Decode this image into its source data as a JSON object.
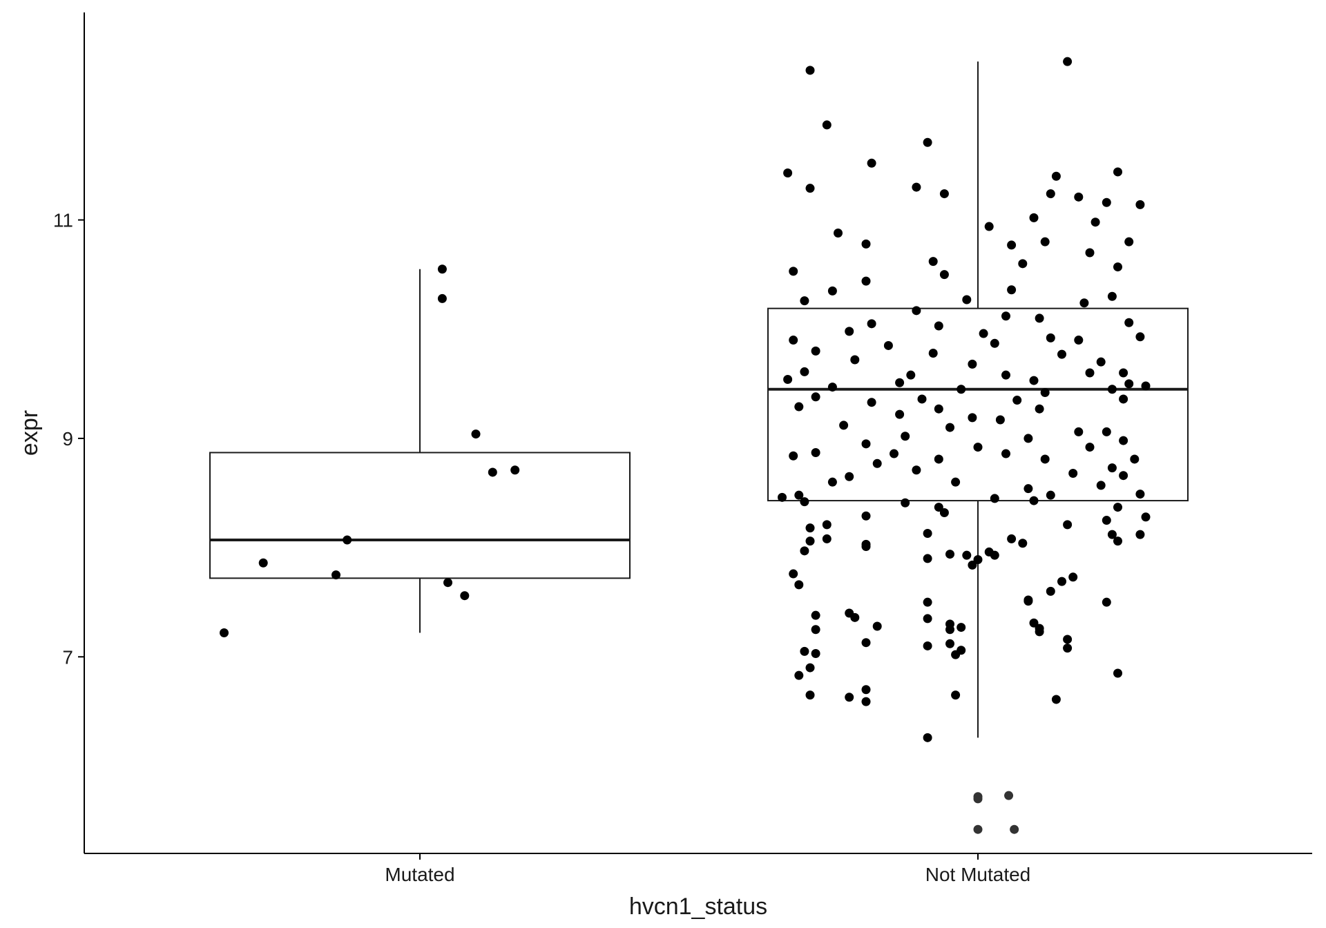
{
  "chart_data": {
    "type": "box",
    "title": "",
    "xlabel": "hvcn1_status",
    "ylabel": "expr",
    "ylim": [
      5.2,
      12.9
    ],
    "yticks": [
      7,
      9,
      11
    ],
    "categories": [
      "Mutated",
      "Not Mutated"
    ],
    "grid": false,
    "legend": "none",
    "colors": {
      "axis": "#000000",
      "box": "#1a1a1a",
      "points": "#000000"
    },
    "boxes": [
      {
        "category": "Mutated",
        "whisker_low": 7.22,
        "q1": 7.72,
        "median": 8.07,
        "q3": 8.87,
        "whisker_high": 10.55,
        "outliers": []
      },
      {
        "category": "Not Mutated",
        "whisker_low": 6.26,
        "q1": 8.43,
        "median": 9.45,
        "q3": 10.19,
        "whisker_high": 12.45,
        "outliers": [
          5.72,
          5.7,
          5.73,
          5.42,
          5.42
        ]
      }
    ],
    "points": [
      {
        "category": "Mutated",
        "offset": 0.04,
        "y": 10.55
      },
      {
        "category": "Mutated",
        "offset": 0.04,
        "y": 10.28
      },
      {
        "category": "Mutated",
        "offset": 0.1,
        "y": 9.04
      },
      {
        "category": "Mutated",
        "offset": 0.17,
        "y": 8.71
      },
      {
        "category": "Mutated",
        "offset": 0.13,
        "y": 8.69
      },
      {
        "category": "Mutated",
        "offset": -0.13,
        "y": 8.07
      },
      {
        "category": "Mutated",
        "offset": -0.28,
        "y": 7.86
      },
      {
        "category": "Mutated",
        "offset": -0.15,
        "y": 7.75
      },
      {
        "category": "Mutated",
        "offset": 0.05,
        "y": 7.68
      },
      {
        "category": "Mutated",
        "offset": 0.08,
        "y": 7.56
      },
      {
        "category": "Mutated",
        "offset": -0.35,
        "y": 7.22
      },
      {
        "category": "Not Mutated",
        "offset": -0.3,
        "y": 12.37
      },
      {
        "category": "Not Mutated",
        "offset": 0.16,
        "y": 12.45
      },
      {
        "category": "Not Mutated",
        "offset": -0.27,
        "y": 11.87
      },
      {
        "category": "Not Mutated",
        "offset": -0.09,
        "y": 11.71
      },
      {
        "category": "Not Mutated",
        "offset": -0.19,
        "y": 11.52
      },
      {
        "category": "Not Mutated",
        "offset": -0.34,
        "y": 11.43
      },
      {
        "category": "Not Mutated",
        "offset": 0.25,
        "y": 11.44
      },
      {
        "category": "Not Mutated",
        "offset": 0.14,
        "y": 11.4
      },
      {
        "category": "Not Mutated",
        "offset": -0.3,
        "y": 11.29
      },
      {
        "category": "Not Mutated",
        "offset": -0.11,
        "y": 11.3
      },
      {
        "category": "Not Mutated",
        "offset": -0.06,
        "y": 11.24
      },
      {
        "category": "Not Mutated",
        "offset": 0.13,
        "y": 11.24
      },
      {
        "category": "Not Mutated",
        "offset": 0.18,
        "y": 11.21
      },
      {
        "category": "Not Mutated",
        "offset": 0.29,
        "y": 11.14
      },
      {
        "category": "Not Mutated",
        "offset": 0.23,
        "y": 11.16
      },
      {
        "category": "Not Mutated",
        "offset": 0.1,
        "y": 11.02
      },
      {
        "category": "Not Mutated",
        "offset": -0.25,
        "y": 10.88
      },
      {
        "category": "Not Mutated",
        "offset": 0.02,
        "y": 10.94
      },
      {
        "category": "Not Mutated",
        "offset": 0.12,
        "y": 10.8
      },
      {
        "category": "Not Mutated",
        "offset": 0.21,
        "y": 10.98
      },
      {
        "category": "Not Mutated",
        "offset": 0.27,
        "y": 10.8
      },
      {
        "category": "Not Mutated",
        "offset": -0.2,
        "y": 10.78
      },
      {
        "category": "Not Mutated",
        "offset": 0.06,
        "y": 10.77
      },
      {
        "category": "Not Mutated",
        "offset": 0.2,
        "y": 10.7
      },
      {
        "category": "Not Mutated",
        "offset": -0.08,
        "y": 10.62
      },
      {
        "category": "Not Mutated",
        "offset": 0.08,
        "y": 10.6
      },
      {
        "category": "Not Mutated",
        "offset": -0.2,
        "y": 10.44
      },
      {
        "category": "Not Mutated",
        "offset": -0.33,
        "y": 10.53
      },
      {
        "category": "Not Mutated",
        "offset": 0.25,
        "y": 10.57
      },
      {
        "category": "Not Mutated",
        "offset": -0.06,
        "y": 10.5
      },
      {
        "category": "Not Mutated",
        "offset": -0.26,
        "y": 10.35
      },
      {
        "category": "Not Mutated",
        "offset": 0.06,
        "y": 10.36
      },
      {
        "category": "Not Mutated",
        "offset": -0.02,
        "y": 10.27
      },
      {
        "category": "Not Mutated",
        "offset": -0.31,
        "y": 10.26
      },
      {
        "category": "Not Mutated",
        "offset": 0.19,
        "y": 10.24
      },
      {
        "category": "Not Mutated",
        "offset": 0.24,
        "y": 10.3
      },
      {
        "category": "Not Mutated",
        "offset": -0.11,
        "y": 10.17
      },
      {
        "category": "Not Mutated",
        "offset": 0.05,
        "y": 10.12
      },
      {
        "category": "Not Mutated",
        "offset": 0.11,
        "y": 10.1
      },
      {
        "category": "Not Mutated",
        "offset": -0.19,
        "y": 10.05
      },
      {
        "category": "Not Mutated",
        "offset": 0.27,
        "y": 10.06
      },
      {
        "category": "Not Mutated",
        "offset": -0.07,
        "y": 10.03
      },
      {
        "category": "Not Mutated",
        "offset": 0.01,
        "y": 9.96
      },
      {
        "category": "Not Mutated",
        "offset": -0.23,
        "y": 9.98
      },
      {
        "category": "Not Mutated",
        "offset": -0.33,
        "y": 9.9
      },
      {
        "category": "Not Mutated",
        "offset": 0.13,
        "y": 9.92
      },
      {
        "category": "Not Mutated",
        "offset": 0.18,
        "y": 9.9
      },
      {
        "category": "Not Mutated",
        "offset": 0.29,
        "y": 9.93
      },
      {
        "category": "Not Mutated",
        "offset": -0.16,
        "y": 9.85
      },
      {
        "category": "Not Mutated",
        "offset": 0.03,
        "y": 9.87
      },
      {
        "category": "Not Mutated",
        "offset": -0.29,
        "y": 9.8
      },
      {
        "category": "Not Mutated",
        "offset": -0.08,
        "y": 9.78
      },
      {
        "category": "Not Mutated",
        "offset": 0.15,
        "y": 9.77
      },
      {
        "category": "Not Mutated",
        "offset": -0.22,
        "y": 9.72
      },
      {
        "category": "Not Mutated",
        "offset": -0.01,
        "y": 9.68
      },
      {
        "category": "Not Mutated",
        "offset": 0.22,
        "y": 9.7
      },
      {
        "category": "Not Mutated",
        "offset": -0.31,
        "y": 9.61
      },
      {
        "category": "Not Mutated",
        "offset": -0.12,
        "y": 9.58
      },
      {
        "category": "Not Mutated",
        "offset": 0.05,
        "y": 9.58
      },
      {
        "category": "Not Mutated",
        "offset": 0.2,
        "y": 9.6
      },
      {
        "category": "Not Mutated",
        "offset": 0.26,
        "y": 9.6
      },
      {
        "category": "Not Mutated",
        "offset": -0.34,
        "y": 9.54
      },
      {
        "category": "Not Mutated",
        "offset": -0.14,
        "y": 9.51
      },
      {
        "category": "Not Mutated",
        "offset": 0.1,
        "y": 9.53
      },
      {
        "category": "Not Mutated",
        "offset": 0.27,
        "y": 9.5
      },
      {
        "category": "Not Mutated",
        "offset": 0.3,
        "y": 9.48
      },
      {
        "category": "Not Mutated",
        "offset": -0.26,
        "y": 9.47
      },
      {
        "category": "Not Mutated",
        "offset": -0.03,
        "y": 9.45
      },
      {
        "category": "Not Mutated",
        "offset": 0.12,
        "y": 9.42
      },
      {
        "category": "Not Mutated",
        "offset": 0.24,
        "y": 9.45
      },
      {
        "category": "Not Mutated",
        "offset": -0.29,
        "y": 9.38
      },
      {
        "category": "Not Mutated",
        "offset": -0.1,
        "y": 9.36
      },
      {
        "category": "Not Mutated",
        "offset": 0.07,
        "y": 9.35
      },
      {
        "category": "Not Mutated",
        "offset": 0.26,
        "y": 9.36
      },
      {
        "category": "Not Mutated",
        "offset": -0.19,
        "y": 9.33
      },
      {
        "category": "Not Mutated",
        "offset": -0.32,
        "y": 9.29
      },
      {
        "category": "Not Mutated",
        "offset": -0.07,
        "y": 9.27
      },
      {
        "category": "Not Mutated",
        "offset": 0.11,
        "y": 9.27
      },
      {
        "category": "Not Mutated",
        "offset": -0.14,
        "y": 9.22
      },
      {
        "category": "Not Mutated",
        "offset": -0.01,
        "y": 9.19
      },
      {
        "category": "Not Mutated",
        "offset": 0.04,
        "y": 9.17
      },
      {
        "category": "Not Mutated",
        "offset": -0.24,
        "y": 9.12
      },
      {
        "category": "Not Mutated",
        "offset": -0.05,
        "y": 9.1
      },
      {
        "category": "Not Mutated",
        "offset": 0.18,
        "y": 9.06
      },
      {
        "category": "Not Mutated",
        "offset": 0.23,
        "y": 9.06
      },
      {
        "category": "Not Mutated",
        "offset": -0.13,
        "y": 9.02
      },
      {
        "category": "Not Mutated",
        "offset": 0.09,
        "y": 9.0
      },
      {
        "category": "Not Mutated",
        "offset": 0.26,
        "y": 8.98
      },
      {
        "category": "Not Mutated",
        "offset": -0.2,
        "y": 8.95
      },
      {
        "category": "Not Mutated",
        "offset": 0.0,
        "y": 8.92
      },
      {
        "category": "Not Mutated",
        "offset": 0.2,
        "y": 8.92
      },
      {
        "category": "Not Mutated",
        "offset": -0.29,
        "y": 8.87
      },
      {
        "category": "Not Mutated",
        "offset": -0.15,
        "y": 8.86
      },
      {
        "category": "Not Mutated",
        "offset": 0.05,
        "y": 8.86
      },
      {
        "category": "Not Mutated",
        "offset": -0.33,
        "y": 8.84
      },
      {
        "category": "Not Mutated",
        "offset": -0.07,
        "y": 8.81
      },
      {
        "category": "Not Mutated",
        "offset": 0.12,
        "y": 8.81
      },
      {
        "category": "Not Mutated",
        "offset": 0.28,
        "y": 8.81
      },
      {
        "category": "Not Mutated",
        "offset": -0.18,
        "y": 8.77
      },
      {
        "category": "Not Mutated",
        "offset": 0.24,
        "y": 8.73
      },
      {
        "category": "Not Mutated",
        "offset": -0.11,
        "y": 8.71
      },
      {
        "category": "Not Mutated",
        "offset": 0.17,
        "y": 8.68
      },
      {
        "category": "Not Mutated",
        "offset": -0.23,
        "y": 8.65
      },
      {
        "category": "Not Mutated",
        "offset": 0.26,
        "y": 8.66
      },
      {
        "category": "Not Mutated",
        "offset": -0.26,
        "y": 8.6
      },
      {
        "category": "Not Mutated",
        "offset": -0.04,
        "y": 8.6
      },
      {
        "category": "Not Mutated",
        "offset": 0.22,
        "y": 8.57
      },
      {
        "category": "Not Mutated",
        "offset": 0.09,
        "y": 8.54
      },
      {
        "category": "Not Mutated",
        "offset": -0.32,
        "y": 8.48
      },
      {
        "category": "Not Mutated",
        "offset": 0.13,
        "y": 8.48
      },
      {
        "category": "Not Mutated",
        "offset": 0.29,
        "y": 8.49
      },
      {
        "category": "Not Mutated",
        "offset": -0.35,
        "y": 8.46
      },
      {
        "category": "Not Mutated",
        "offset": 0.03,
        "y": 8.45
      },
      {
        "category": "Not Mutated",
        "offset": -0.31,
        "y": 8.42
      },
      {
        "category": "Not Mutated",
        "offset": -0.13,
        "y": 8.41
      },
      {
        "category": "Not Mutated",
        "offset": 0.1,
        "y": 8.43
      },
      {
        "category": "Not Mutated",
        "offset": -0.07,
        "y": 8.37
      },
      {
        "category": "Not Mutated",
        "offset": 0.25,
        "y": 8.37
      },
      {
        "category": "Not Mutated",
        "offset": -0.06,
        "y": 8.32
      },
      {
        "category": "Not Mutated",
        "offset": -0.2,
        "y": 8.29
      },
      {
        "category": "Not Mutated",
        "offset": 0.3,
        "y": 8.28
      },
      {
        "category": "Not Mutated",
        "offset": 0.23,
        "y": 8.25
      },
      {
        "category": "Not Mutated",
        "offset": -0.27,
        "y": 8.21
      },
      {
        "category": "Not Mutated",
        "offset": -0.3,
        "y": 8.18
      },
      {
        "category": "Not Mutated",
        "offset": 0.16,
        "y": 8.21
      },
      {
        "category": "Not Mutated",
        "offset": -0.09,
        "y": 8.13
      },
      {
        "category": "Not Mutated",
        "offset": 0.24,
        "y": 8.12
      },
      {
        "category": "Not Mutated",
        "offset": 0.29,
        "y": 8.12
      },
      {
        "category": "Not Mutated",
        "offset": -0.27,
        "y": 8.08
      },
      {
        "category": "Not Mutated",
        "offset": -0.3,
        "y": 8.06
      },
      {
        "category": "Not Mutated",
        "offset": 0.06,
        "y": 8.08
      },
      {
        "category": "Not Mutated",
        "offset": 0.25,
        "y": 8.06
      },
      {
        "category": "Not Mutated",
        "offset": -0.2,
        "y": 8.03
      },
      {
        "category": "Not Mutated",
        "offset": 0.08,
        "y": 8.04
      },
      {
        "category": "Not Mutated",
        "offset": -0.2,
        "y": 8.01
      },
      {
        "category": "Not Mutated",
        "offset": -0.31,
        "y": 7.97
      },
      {
        "category": "Not Mutated",
        "offset": -0.05,
        "y": 7.94
      },
      {
        "category": "Not Mutated",
        "offset": -0.02,
        "y": 7.93
      },
      {
        "category": "Not Mutated",
        "offset": 0.02,
        "y": 7.96
      },
      {
        "category": "Not Mutated",
        "offset": 0.03,
        "y": 7.93
      },
      {
        "category": "Not Mutated",
        "offset": -0.09,
        "y": 7.9
      },
      {
        "category": "Not Mutated",
        "offset": 0.0,
        "y": 7.89
      },
      {
        "category": "Not Mutated",
        "offset": -0.01,
        "y": 7.84
      },
      {
        "category": "Not Mutated",
        "offset": -0.33,
        "y": 7.76
      },
      {
        "category": "Not Mutated",
        "offset": 0.17,
        "y": 7.73
      },
      {
        "category": "Not Mutated",
        "offset": 0.15,
        "y": 7.69
      },
      {
        "category": "Not Mutated",
        "offset": -0.32,
        "y": 7.66
      },
      {
        "category": "Not Mutated",
        "offset": 0.13,
        "y": 7.6
      },
      {
        "category": "Not Mutated",
        "offset": 0.09,
        "y": 7.52
      },
      {
        "category": "Not Mutated",
        "offset": 0.09,
        "y": 7.51
      },
      {
        "category": "Not Mutated",
        "offset": 0.23,
        "y": 7.5
      },
      {
        "category": "Not Mutated",
        "offset": -0.09,
        "y": 7.5
      },
      {
        "category": "Not Mutated",
        "offset": -0.29,
        "y": 7.38
      },
      {
        "category": "Not Mutated",
        "offset": -0.23,
        "y": 7.4
      },
      {
        "category": "Not Mutated",
        "offset": -0.22,
        "y": 7.36
      },
      {
        "category": "Not Mutated",
        "offset": -0.09,
        "y": 7.35
      },
      {
        "category": "Not Mutated",
        "offset": -0.05,
        "y": 7.3
      },
      {
        "category": "Not Mutated",
        "offset": 0.1,
        "y": 7.31
      },
      {
        "category": "Not Mutated",
        "offset": -0.18,
        "y": 7.28
      },
      {
        "category": "Not Mutated",
        "offset": -0.03,
        "y": 7.27
      },
      {
        "category": "Not Mutated",
        "offset": 0.11,
        "y": 7.26
      },
      {
        "category": "Not Mutated",
        "offset": -0.05,
        "y": 7.25
      },
      {
        "category": "Not Mutated",
        "offset": -0.29,
        "y": 7.25
      },
      {
        "category": "Not Mutated",
        "offset": 0.11,
        "y": 7.23
      },
      {
        "category": "Not Mutated",
        "offset": 0.16,
        "y": 7.16
      },
      {
        "category": "Not Mutated",
        "offset": -0.2,
        "y": 7.13
      },
      {
        "category": "Not Mutated",
        "offset": -0.05,
        "y": 7.12
      },
      {
        "category": "Not Mutated",
        "offset": -0.09,
        "y": 7.1
      },
      {
        "category": "Not Mutated",
        "offset": 0.16,
        "y": 7.08
      },
      {
        "category": "Not Mutated",
        "offset": -0.31,
        "y": 7.05
      },
      {
        "category": "Not Mutated",
        "offset": -0.03,
        "y": 7.06
      },
      {
        "category": "Not Mutated",
        "offset": -0.29,
        "y": 7.03
      },
      {
        "category": "Not Mutated",
        "offset": -0.04,
        "y": 7.02
      },
      {
        "category": "Not Mutated",
        "offset": -0.3,
        "y": 6.9
      },
      {
        "category": "Not Mutated",
        "offset": -0.32,
        "y": 6.83
      },
      {
        "category": "Not Mutated",
        "offset": 0.25,
        "y": 6.85
      },
      {
        "category": "Not Mutated",
        "offset": -0.2,
        "y": 6.7
      },
      {
        "category": "Not Mutated",
        "offset": -0.3,
        "y": 6.65
      },
      {
        "category": "Not Mutated",
        "offset": -0.23,
        "y": 6.63
      },
      {
        "category": "Not Mutated",
        "offset": -0.04,
        "y": 6.65
      },
      {
        "category": "Not Mutated",
        "offset": 0.14,
        "y": 6.61
      },
      {
        "category": "Not Mutated",
        "offset": -0.2,
        "y": 6.59
      },
      {
        "category": "Not Mutated",
        "offset": -0.09,
        "y": 6.26
      }
    ]
  }
}
